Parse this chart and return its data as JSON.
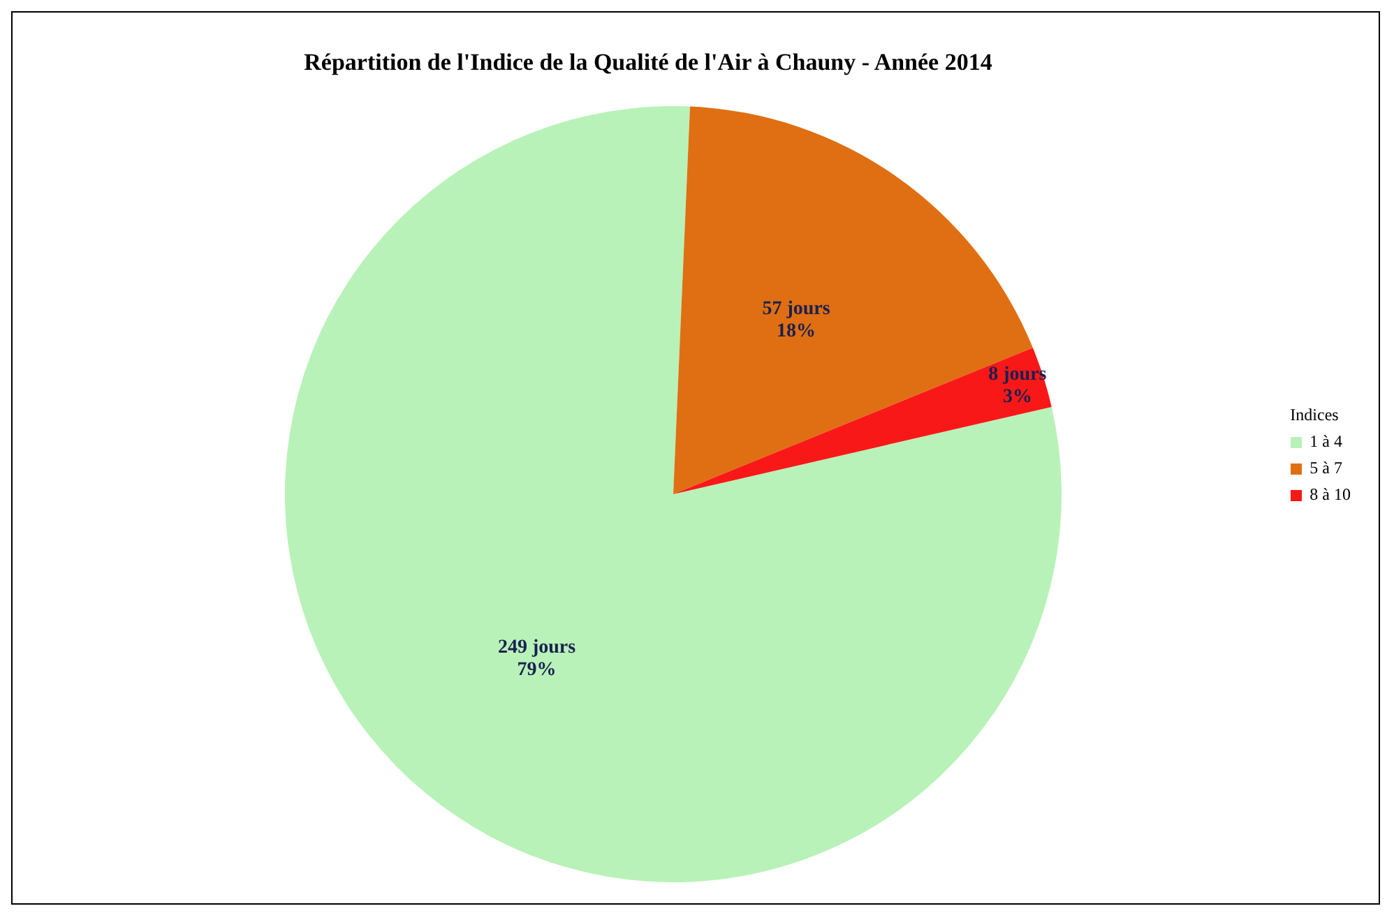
{
  "chart_data": {
    "type": "pie",
    "title": "Répartition de l'Indice de la Qualité de l'Air à Chauny - Année 2014",
    "legend_title": "Indices",
    "legend": "right",
    "categories": [
      "1 à 4",
      "5 à 7",
      "8 à 10"
    ],
    "values": [
      249,
      57,
      8
    ],
    "colors": [
      "#b8f2b8",
      "#df6f12",
      "#f91818"
    ],
    "value_labels": [
      "249 jours\n79%",
      "57 jours\n18%",
      "8 jours\n3%"
    ]
  }
}
